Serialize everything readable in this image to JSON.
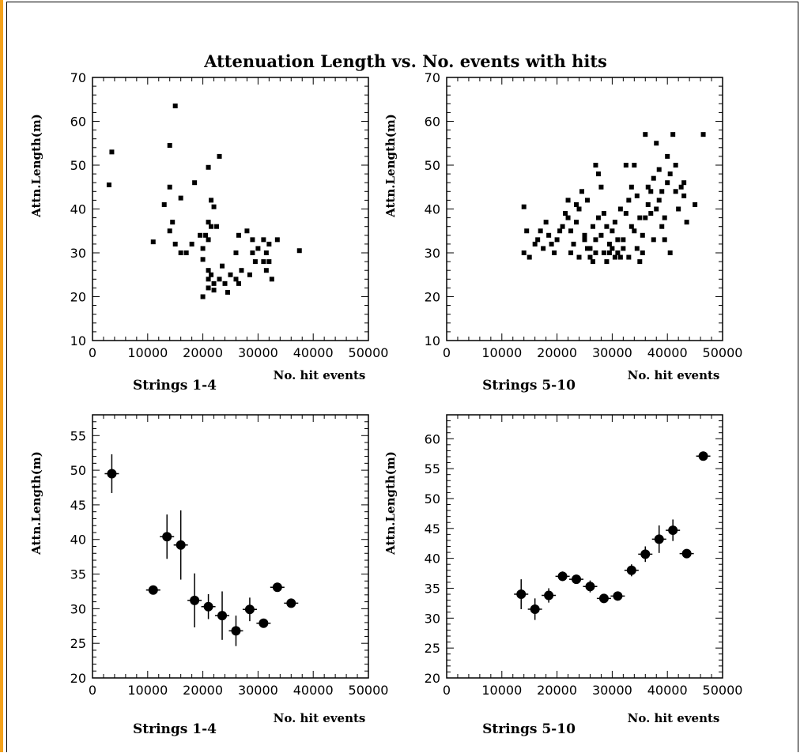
{
  "figure": {
    "title": "Attenuation Length vs. No. events with hits"
  },
  "colors": {
    "points": "#000000",
    "frame": "#000000",
    "left_bar": "#f4a21c"
  },
  "chart_data": [
    {
      "type": "scatter",
      "title": "Strings 1-4",
      "xlabel": "No. hit events",
      "ylabel": "Attn.Length(m)",
      "xlim": [
        0,
        50000
      ],
      "ylim": [
        10,
        70
      ],
      "x_ticks": [
        0,
        10000,
        20000,
        30000,
        40000,
        50000
      ],
      "y_ticks": [
        10,
        20,
        30,
        40,
        50,
        60,
        70
      ],
      "marker": "square",
      "points": [
        [
          3500,
          53
        ],
        [
          3000,
          45.5
        ],
        [
          15000,
          63.5
        ],
        [
          14000,
          54.5
        ],
        [
          14000,
          45
        ],
        [
          16000,
          42.5
        ],
        [
          13000,
          41
        ],
        [
          14500,
          37
        ],
        [
          14000,
          35
        ],
        [
          11000,
          32.5
        ],
        [
          15000,
          32
        ],
        [
          16000,
          30
        ],
        [
          17000,
          30
        ],
        [
          18000,
          32
        ],
        [
          18500,
          46
        ],
        [
          19500,
          34
        ],
        [
          20000,
          31
        ],
        [
          21000,
          49.5
        ],
        [
          21500,
          42
        ],
        [
          22000,
          40.5
        ],
        [
          21000,
          37
        ],
        [
          21500,
          36
        ],
        [
          20500,
          34
        ],
        [
          21000,
          33
        ],
        [
          23000,
          52
        ],
        [
          22500,
          36
        ],
        [
          20000,
          28.5
        ],
        [
          21000,
          26
        ],
        [
          21500,
          25
        ],
        [
          21000,
          24
        ],
        [
          22000,
          23
        ],
        [
          21000,
          22
        ],
        [
          20000,
          20
        ],
        [
          22000,
          21.5
        ],
        [
          23500,
          27
        ],
        [
          23000,
          24
        ],
        [
          24000,
          23
        ],
        [
          25000,
          25
        ],
        [
          26000,
          24
        ],
        [
          24500,
          21
        ],
        [
          26500,
          23
        ],
        [
          27000,
          26
        ],
        [
          26000,
          30
        ],
        [
          26500,
          34
        ],
        [
          28000,
          35
        ],
        [
          29000,
          33
        ],
        [
          29000,
          30
        ],
        [
          29500,
          28
        ],
        [
          28500,
          25
        ],
        [
          30000,
          31
        ],
        [
          31000,
          33
        ],
        [
          31500,
          30
        ],
        [
          31000,
          28
        ],
        [
          32000,
          28
        ],
        [
          31500,
          26
        ],
        [
          32500,
          24
        ],
        [
          32000,
          32
        ],
        [
          33500,
          33
        ],
        [
          37500,
          30.5
        ]
      ]
    },
    {
      "type": "scatter",
      "title": "Strings 5-10",
      "xlabel": "No. hit events",
      "ylabel": "Attn.Length(m)",
      "xlim": [
        0,
        50000
      ],
      "ylim": [
        10,
        70
      ],
      "x_ticks": [
        0,
        10000,
        20000,
        30000,
        40000,
        50000
      ],
      "y_ticks": [
        10,
        20,
        30,
        40,
        50,
        60,
        70
      ],
      "marker": "square",
      "points": [
        [
          14000,
          40.5
        ],
        [
          14500,
          35
        ],
        [
          14000,
          30
        ],
        [
          15000,
          29
        ],
        [
          16000,
          32
        ],
        [
          17000,
          35
        ],
        [
          18000,
          37
        ],
        [
          18500,
          34
        ],
        [
          17500,
          31
        ],
        [
          19000,
          32
        ],
        [
          20000,
          33
        ],
        [
          21000,
          36
        ],
        [
          21500,
          39
        ],
        [
          22000,
          42
        ],
        [
          22500,
          35
        ],
        [
          23000,
          32
        ],
        [
          22500,
          30
        ],
        [
          23500,
          37
        ],
        [
          24000,
          40
        ],
        [
          24500,
          44
        ],
        [
          25000,
          34
        ],
        [
          25500,
          31
        ],
        [
          26000,
          29
        ],
        [
          26500,
          36
        ],
        [
          27000,
          33
        ],
        [
          27500,
          38
        ],
        [
          27000,
          50
        ],
        [
          27500,
          48
        ],
        [
          28000,
          45
        ],
        [
          28500,
          30
        ],
        [
          29000,
          28
        ],
        [
          29500,
          32
        ],
        [
          30000,
          35
        ],
        [
          30500,
          37
        ],
        [
          31000,
          30
        ],
        [
          31500,
          29
        ],
        [
          32000,
          33
        ],
        [
          32500,
          39
        ],
        [
          33000,
          42
        ],
        [
          33500,
          45
        ],
        [
          34000,
          50
        ],
        [
          32500,
          50
        ],
        [
          33500,
          36
        ],
        [
          34500,
          31
        ],
        [
          35000,
          28
        ],
        [
          35500,
          34
        ],
        [
          36000,
          38
        ],
        [
          36500,
          41
        ],
        [
          36000,
          57
        ],
        [
          37000,
          44
        ],
        [
          37500,
          47
        ],
        [
          38000,
          55
        ],
        [
          38500,
          49
        ],
        [
          39000,
          36
        ],
        [
          39500,
          33
        ],
        [
          40000,
          52
        ],
        [
          40500,
          48
        ],
        [
          41000,
          57
        ],
        [
          41500,
          44
        ],
        [
          42000,
          40
        ],
        [
          40500,
          30
        ],
        [
          43000,
          43
        ],
        [
          43500,
          37
        ],
        [
          45000,
          41
        ],
        [
          46500,
          57
        ],
        [
          25000,
          33
        ],
        [
          26000,
          31
        ],
        [
          28000,
          34
        ],
        [
          29000,
          36
        ],
        [
          30000,
          31
        ],
        [
          31000,
          33
        ],
        [
          24000,
          29
        ],
        [
          26500,
          28
        ],
        [
          29500,
          30
        ],
        [
          33000,
          29
        ],
        [
          34000,
          35
        ],
        [
          35000,
          38
        ],
        [
          37000,
          39
        ],
        [
          38500,
          42
        ],
        [
          40000,
          46
        ],
        [
          41500,
          50
        ],
        [
          22000,
          38
        ],
        [
          20500,
          35
        ],
        [
          19500,
          30
        ],
        [
          16500,
          33
        ],
        [
          23500,
          41
        ],
        [
          25500,
          42
        ],
        [
          28500,
          39
        ],
        [
          31500,
          40
        ],
        [
          34500,
          43
        ],
        [
          36500,
          45
        ],
        [
          38000,
          40
        ],
        [
          39000,
          44
        ],
        [
          42500,
          45
        ],
        [
          43000,
          46
        ],
        [
          27000,
          30
        ],
        [
          30500,
          29
        ],
        [
          32000,
          31
        ],
        [
          35500,
          30
        ],
        [
          37500,
          33
        ],
        [
          39500,
          38
        ]
      ]
    },
    {
      "type": "scatter",
      "title": "Strings 1-4",
      "xlabel": "No. hit events",
      "ylabel": "Attn.Length(m)",
      "xlim": [
        0,
        50000
      ],
      "ylim": [
        20,
        58
      ],
      "x_ticks": [
        0,
        10000,
        20000,
        30000,
        40000,
        50000
      ],
      "y_ticks": [
        20,
        25,
        30,
        35,
        40,
        45,
        50,
        55
      ],
      "marker": "circle",
      "points": [
        {
          "x": 3500,
          "y": 49.5,
          "err": 2.8
        },
        {
          "x": 11000,
          "y": 32.7,
          "err": 0.6
        },
        {
          "x": 13500,
          "y": 40.4,
          "err": 3.2
        },
        {
          "x": 16000,
          "y": 39.2,
          "err": 5.0
        },
        {
          "x": 18500,
          "y": 31.2,
          "err": 3.9
        },
        {
          "x": 21000,
          "y": 30.3,
          "err": 1.8
        },
        {
          "x": 23500,
          "y": 29.0,
          "err": 3.5
        },
        {
          "x": 26000,
          "y": 26.8,
          "err": 2.2
        },
        {
          "x": 28500,
          "y": 29.9,
          "err": 1.7
        },
        {
          "x": 31000,
          "y": 27.9,
          "err": 0.6
        },
        {
          "x": 33500,
          "y": 33.1,
          "err": 0.6
        },
        {
          "x": 36000,
          "y": 30.8,
          "err": 0.6
        }
      ]
    },
    {
      "type": "scatter",
      "title": "Strings 5-10",
      "xlabel": "No. hit events",
      "ylabel": "Attn.Length(m)",
      "xlim": [
        0,
        50000
      ],
      "ylim": [
        20,
        64
      ],
      "x_ticks": [
        0,
        10000,
        20000,
        30000,
        40000,
        50000
      ],
      "y_ticks": [
        20,
        25,
        30,
        35,
        40,
        45,
        50,
        55,
        60
      ],
      "marker": "circle",
      "points": [
        {
          "x": 13500,
          "y": 34.0,
          "err": 2.5
        },
        {
          "x": 16000,
          "y": 31.5,
          "err": 1.8
        },
        {
          "x": 18500,
          "y": 33.8,
          "err": 1.2
        },
        {
          "x": 21000,
          "y": 37.0,
          "err": 0.8
        },
        {
          "x": 23500,
          "y": 36.5,
          "err": 0.7
        },
        {
          "x": 26000,
          "y": 35.3,
          "err": 1.0
        },
        {
          "x": 28500,
          "y": 33.3,
          "err": 0.6
        },
        {
          "x": 31000,
          "y": 33.7,
          "err": 0.5
        },
        {
          "x": 33500,
          "y": 38.0,
          "err": 1.0
        },
        {
          "x": 36000,
          "y": 40.7,
          "err": 1.3
        },
        {
          "x": 38500,
          "y": 43.2,
          "err": 2.3
        },
        {
          "x": 41000,
          "y": 44.7,
          "err": 1.8
        },
        {
          "x": 43500,
          "y": 40.8,
          "err": 0.6
        },
        {
          "x": 46500,
          "y": 57.1,
          "err": 0.6
        }
      ]
    }
  ]
}
